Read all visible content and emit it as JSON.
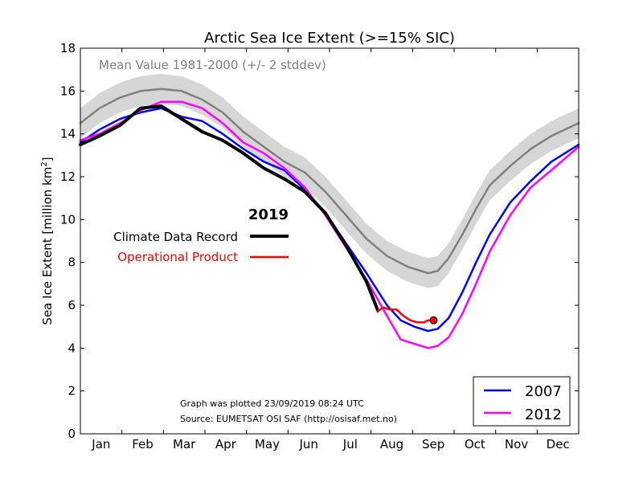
{
  "chart_data": {
    "type": "line",
    "title": "Arctic Sea Ice Extent (>=15% SIC)",
    "ylabel": "Sea Ice Extent [million km²]",
    "ylabel_main": "Sea Ice Extent [million km",
    "ylabel_sup": "2",
    "ylabel_end": "]",
    "xlabel": "",
    "ylim": [
      0,
      18
    ],
    "xlim": [
      1,
      365
    ],
    "yticks": [
      0,
      2,
      4,
      6,
      8,
      10,
      12,
      14,
      16,
      18
    ],
    "months": [
      "Jan",
      "Feb",
      "Mar",
      "Apr",
      "May",
      "Jun",
      "Jul",
      "Aug",
      "Sep",
      "Oct",
      "Nov",
      "Dec"
    ],
    "mean_label": "Mean Value 1981-2000 (+/- 2 stddev)",
    "year_heading": "2019",
    "footer_line1": "Graph was plotted 23/09/2019 08:24 UTC",
    "footer_line2": "Source: EUMETSAT OSI SAF (http://osisaf.met.no)",
    "legend_2019": [
      {
        "name": "Climate Data Record",
        "color": "#000000"
      },
      {
        "name": "Operational Product",
        "color": "#ff0000"
      }
    ],
    "legend_years": [
      {
        "name": "2007",
        "color": "#0000ff"
      },
      {
        "name": "2012",
        "color": "#ff00ff"
      }
    ],
    "series": [
      {
        "name": "Mean Value 1981-2000",
        "color": "#808080",
        "x": [
          1,
          15,
          30,
          45,
          60,
          75,
          90,
          105,
          120,
          135,
          150,
          165,
          180,
          195,
          210,
          225,
          240,
          255,
          262,
          270,
          280,
          290,
          300,
          315,
          330,
          345,
          365
        ],
        "y": [
          14.5,
          15.2,
          15.7,
          16.0,
          16.1,
          16.0,
          15.6,
          15.0,
          14.1,
          13.4,
          12.7,
          12.2,
          11.3,
          10.2,
          9.1,
          8.3,
          7.8,
          7.5,
          7.6,
          8.2,
          9.3,
          10.5,
          11.6,
          12.5,
          13.3,
          13.9,
          14.5
        ],
        "band": 0.7
      },
      {
        "name": "2007",
        "color": "#0000ff",
        "x": [
          1,
          15,
          30,
          45,
          60,
          75,
          90,
          105,
          120,
          135,
          150,
          165,
          180,
          195,
          210,
          225,
          235,
          245,
          255,
          262,
          270,
          280,
          290,
          300,
          315,
          330,
          345,
          365
        ],
        "y": [
          13.6,
          14.2,
          14.7,
          15.0,
          15.2,
          14.8,
          14.6,
          14.0,
          13.3,
          12.7,
          12.3,
          11.4,
          10.3,
          8.9,
          7.5,
          6.0,
          5.3,
          5.0,
          4.8,
          4.9,
          5.4,
          6.6,
          8.0,
          9.3,
          10.8,
          11.8,
          12.7,
          13.5
        ]
      },
      {
        "name": "2012",
        "color": "#ff00ff",
        "x": [
          1,
          15,
          30,
          45,
          60,
          75,
          90,
          105,
          120,
          135,
          150,
          165,
          180,
          195,
          210,
          225,
          235,
          245,
          255,
          262,
          270,
          280,
          290,
          300,
          315,
          330,
          345,
          365
        ],
        "y": [
          13.7,
          14.0,
          14.5,
          15.1,
          15.5,
          15.5,
          15.2,
          14.5,
          13.6,
          13.1,
          12.4,
          11.5,
          10.2,
          8.7,
          7.2,
          5.5,
          4.4,
          4.2,
          4.0,
          4.1,
          4.5,
          5.6,
          7.0,
          8.5,
          10.2,
          11.5,
          12.3,
          13.4
        ]
      },
      {
        "name": "Climate Data Record",
        "color": "#000000",
        "x": [
          1,
          15,
          30,
          45,
          60,
          75,
          90,
          105,
          120,
          135,
          150,
          165,
          180,
          195,
          210,
          218
        ],
        "y": [
          13.5,
          13.9,
          14.4,
          15.2,
          15.3,
          14.7,
          14.1,
          13.7,
          13.1,
          12.4,
          11.9,
          11.3,
          10.3,
          8.8,
          7.1,
          5.8
        ]
      },
      {
        "name": "Operational Product",
        "color": "#ff0000",
        "x": [
          218,
          222,
          227,
          232,
          237,
          242,
          247,
          252,
          255,
          259
        ],
        "y": [
          5.7,
          5.9,
          5.8,
          5.8,
          5.5,
          5.3,
          5.2,
          5.2,
          5.3,
          5.3
        ]
      }
    ],
    "latest_point": {
      "x": 259,
      "y": 5.3,
      "color": "#ff0000"
    }
  }
}
